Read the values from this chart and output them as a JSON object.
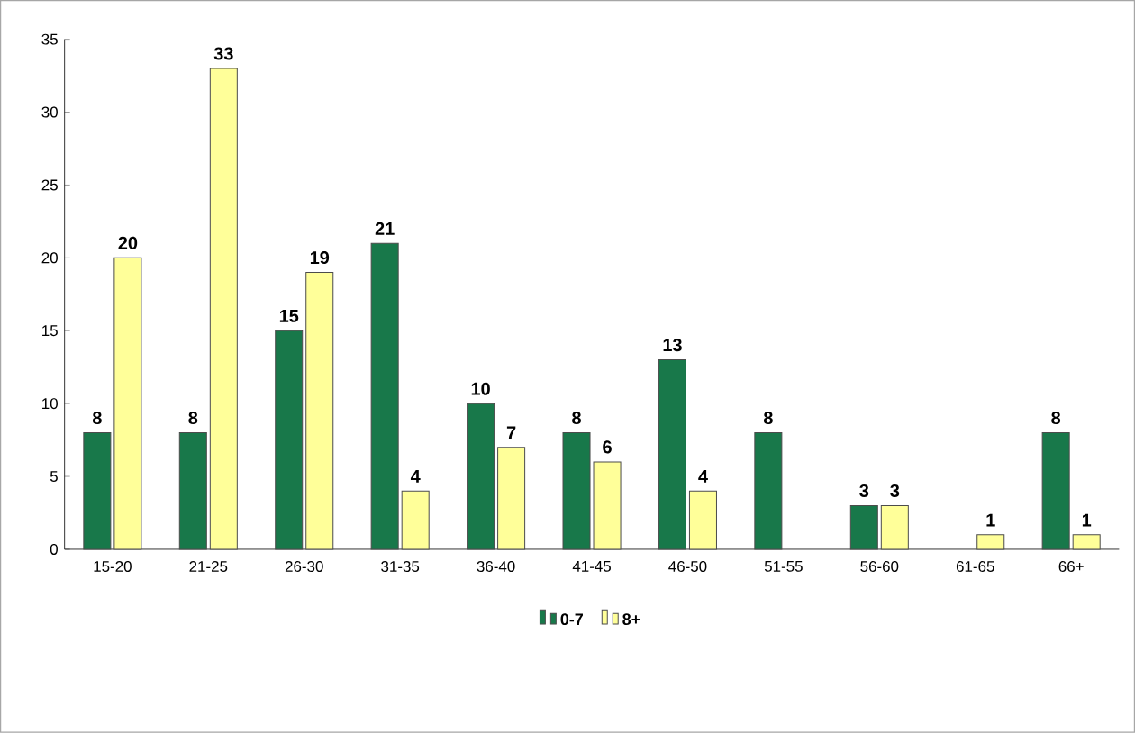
{
  "chart_data": {
    "type": "bar",
    "categories": [
      "15-20",
      "21-25",
      "26-30",
      "31-35",
      "36-40",
      "41-45",
      "46-50",
      "51-55",
      "56-60",
      "61-65",
      "66+"
    ],
    "series": [
      {
        "name": "0-7",
        "color": "#18784a",
        "values": [
          8,
          8,
          15,
          21,
          10,
          8,
          13,
          8,
          3,
          null,
          8
        ],
        "value_labels": [
          "8",
          "8",
          "15",
          "21",
          "10",
          "8",
          "13",
          "8",
          "3",
          null,
          "8"
        ]
      },
      {
        "name": "8+",
        "color": "#ffff99",
        "values": [
          20,
          33,
          19,
          4,
          7,
          6,
          4,
          null,
          3,
          1,
          1
        ],
        "value_labels": [
          "20",
          "33",
          "19",
          "4",
          "7",
          "6",
          "4",
          null,
          "3",
          "1",
          "1"
        ]
      }
    ],
    "ylim": [
      0,
      35
    ],
    "yticks": [
      0,
      5,
      10,
      15,
      20,
      25,
      30,
      35
    ],
    "grid": false,
    "legend": "bottom"
  }
}
